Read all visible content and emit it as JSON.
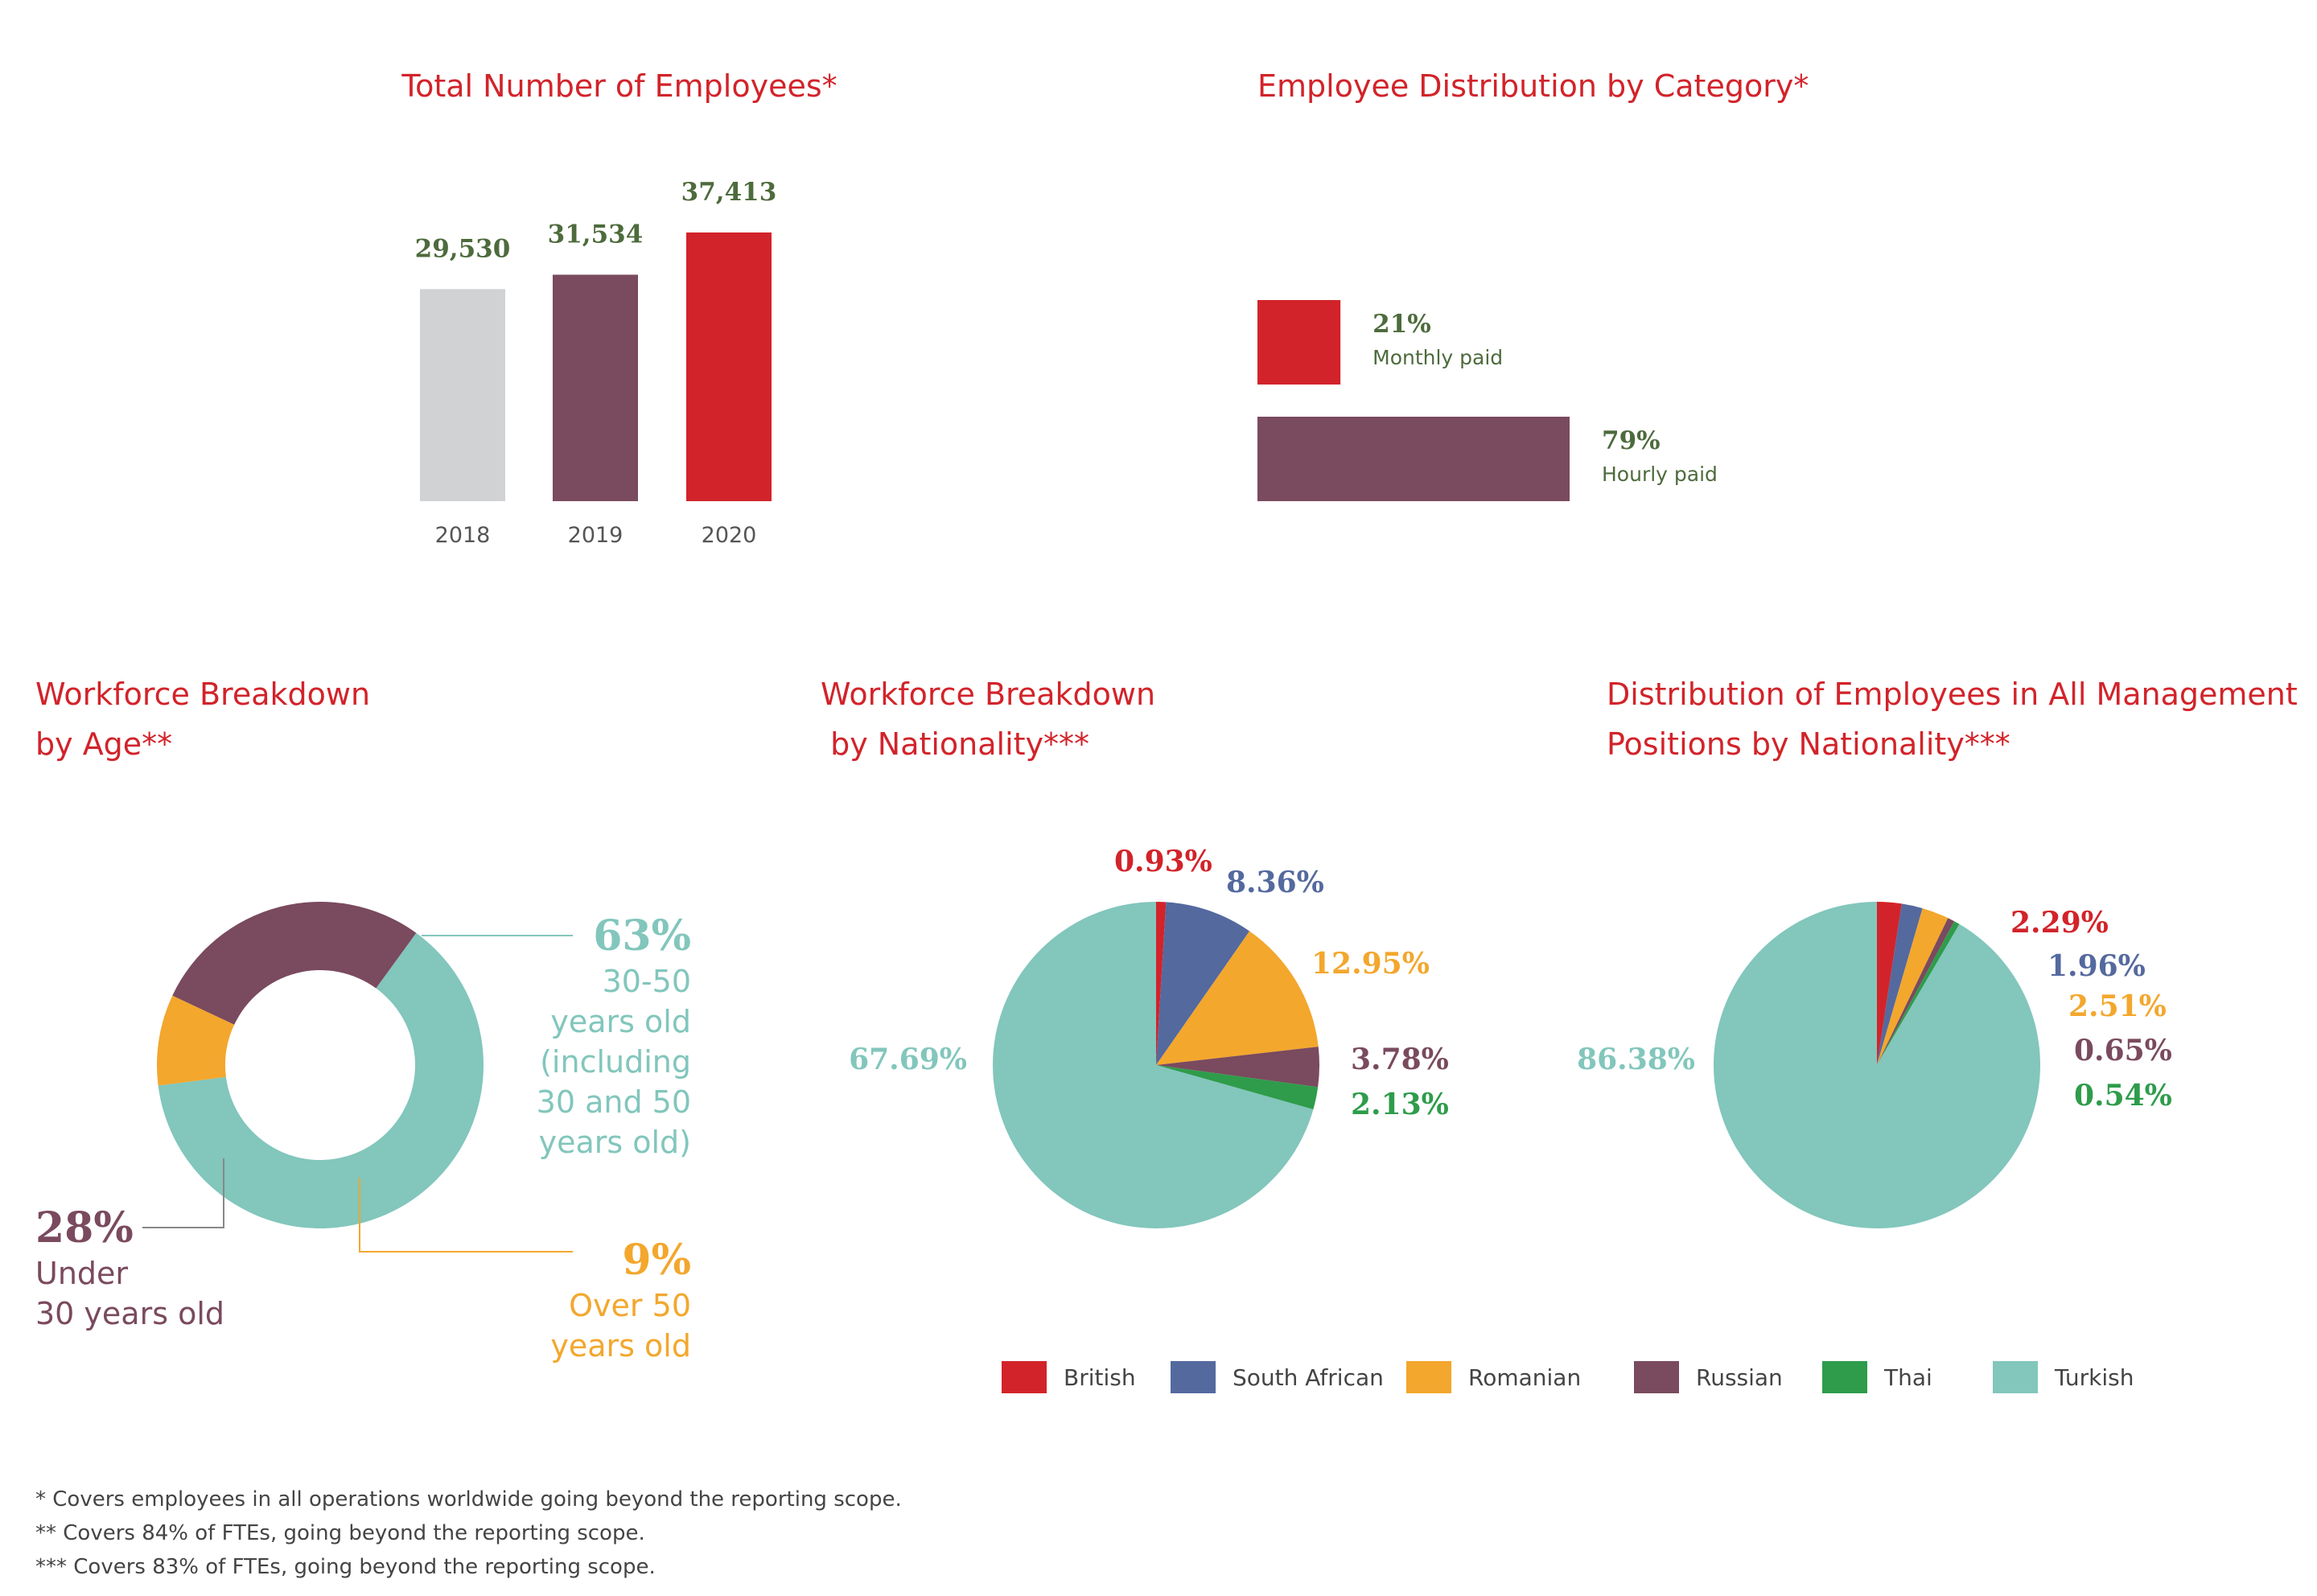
{
  "colors": {
    "title": "#d2232a",
    "value_label": "#4d6b3c",
    "gray": "#d1d2d4",
    "plum": "#7a4a5e",
    "red": "#d2232a",
    "teal": "#82c6bc",
    "orange": "#f3a72d",
    "blue": "#54699e",
    "green": "#2e9c4b"
  },
  "chart_data": [
    {
      "id": "employees",
      "type": "bar",
      "title": "Total Number of Employees*",
      "categories": [
        "2018",
        "2019",
        "2020"
      ],
      "values": [
        29530,
        31534,
        37413
      ],
      "value_labels": [
        "29,530",
        "31,534",
        "37,413"
      ],
      "bar_colors": [
        "#d1d2d4",
        "#7a4a5e",
        "#d2232a"
      ],
      "ylim": [
        0,
        37413
      ]
    },
    {
      "id": "category",
      "type": "bar",
      "orientation": "horizontal",
      "title": "Employee Distribution by Category*",
      "categories": [
        "Monthly paid",
        "Hourly paid"
      ],
      "values": [
        21,
        79
      ],
      "value_labels": [
        "21%",
        "79%"
      ],
      "bar_colors": [
        "#d2232a",
        "#7a4a5e"
      ],
      "xlim": [
        0,
        79
      ]
    },
    {
      "id": "age",
      "type": "pie",
      "variant": "donut",
      "title": "Workforce Breakdown by Age**",
      "title_lines": [
        "Workforce Breakdown",
        "by Age**"
      ],
      "slices": [
        {
          "label": "30-50 years old (including 30 and 50 years old)",
          "value": 63,
          "pct_label": "63%",
          "desc_lines": [
            "30-50",
            "years old",
            "(including",
            "30 and 50",
            "years old)"
          ],
          "color": "#82c6bc"
        },
        {
          "label": "Over 50 years old",
          "value": 9,
          "pct_label": "9%",
          "desc_lines": [
            "Over 50",
            "years old"
          ],
          "color": "#f3a72d"
        },
        {
          "label": "Under 30 years old",
          "value": 28,
          "pct_label": "28%",
          "desc_lines": [
            "Under",
            "30 years old"
          ],
          "color": "#7a4a5e"
        }
      ]
    },
    {
      "id": "nationality",
      "type": "pie",
      "title": "Workforce Breakdown by Nationality***",
      "title_lines": [
        "Workforce Breakdown",
        " by Nationality***"
      ],
      "slices": [
        {
          "label": "British",
          "value": 0.93,
          "pct_label": "0.93%",
          "color": "#d2232a"
        },
        {
          "label": "South African",
          "value": 8.36,
          "pct_label": "8.36%",
          "color": "#54699e"
        },
        {
          "label": "Romanian",
          "value": 12.95,
          "pct_label": "12.95%",
          "color": "#f3a72d"
        },
        {
          "label": "Russian",
          "value": 3.78,
          "pct_label": "3.78%",
          "color": "#7a4a5e"
        },
        {
          "label": "Thai",
          "value": 2.13,
          "pct_label": "2.13%",
          "color": "#2e9c4b"
        },
        {
          "label": "Turkish",
          "value": 67.69,
          "pct_label": "67.69%",
          "color": "#82c6bc"
        }
      ]
    },
    {
      "id": "management",
      "type": "pie",
      "title": "Distribution of Employees in All Management Positions by Nationality***",
      "title_lines": [
        "Distribution of Employees in All Management",
        "Positions by Nationality***"
      ],
      "slices": [
        {
          "label": "British",
          "value": 2.29,
          "pct_label": "2.29%",
          "color": "#d2232a"
        },
        {
          "label": "South African",
          "value": 1.96,
          "pct_label": "1.96%",
          "color": "#54699e"
        },
        {
          "label": "Romanian",
          "value": 2.51,
          "pct_label": "2.51%",
          "color": "#f3a72d"
        },
        {
          "label": "Russian",
          "value": 0.65,
          "pct_label": "0.65%",
          "color": "#7a4a5e"
        },
        {
          "label": "Thai",
          "value": 0.54,
          "pct_label": "0.54%",
          "color": "#2e9c4b"
        },
        {
          "label": "Turkish",
          "value": 86.38,
          "pct_label": "86.38%",
          "color": "#82c6bc"
        }
      ]
    }
  ],
  "legend": {
    "placement": "bottom",
    "items": [
      {
        "label": "British",
        "color": "#d2232a"
      },
      {
        "label": "South African",
        "color": "#54699e"
      },
      {
        "label": "Romanian",
        "color": "#f3a72d"
      },
      {
        "label": "Russian",
        "color": "#7a4a5e"
      },
      {
        "label": "Thai",
        "color": "#2e9c4b"
      },
      {
        "label": "Turkish",
        "color": "#82c6bc"
      }
    ]
  },
  "footnotes": [
    "* Covers employees in all operations worldwide going beyond the reporting scope.",
    "** Covers 84% of FTEs, going beyond the reporting scope.",
    "*** Covers 83% of FTEs, going beyond the reporting scope."
  ]
}
